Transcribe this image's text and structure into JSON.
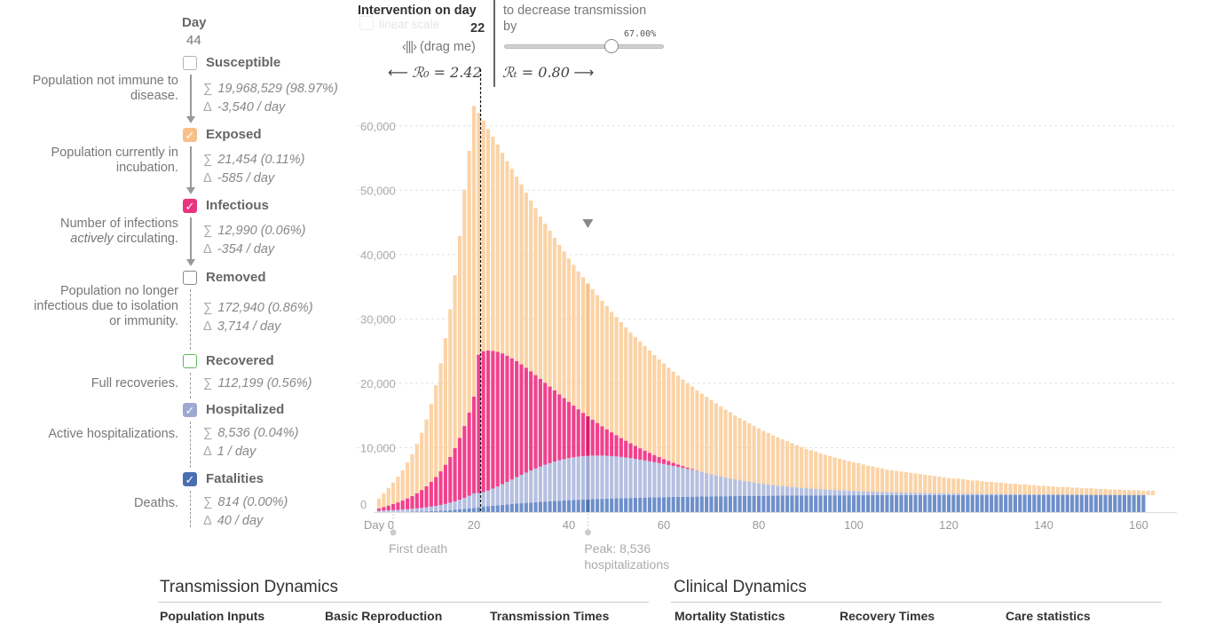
{
  "day": {
    "label": "Day",
    "value": "44"
  },
  "compartments": [
    {
      "name": "Susceptible",
      "color": "#b3b3b3",
      "checked": false,
      "description": "Population not immune to disease.",
      "sum": "19,968,529 (98.97%)",
      "delta": "-3,540 / day",
      "arrow": true
    },
    {
      "name": "Exposed",
      "color": "#f7c08a",
      "checked": true,
      "description": "Population currently in incubation.",
      "sum": "21,454 (0.11%)",
      "delta": "-585 / day",
      "arrow": true
    },
    {
      "name": "Infectious",
      "color": "#e8347e",
      "checked": true,
      "description": "Number of infections *actively* circulating.",
      "sum": "12,990 (0.06%)",
      "delta": "-354 / day",
      "arrow": true
    },
    {
      "name": "Removed",
      "color": "#888888",
      "checked": false,
      "description": "Population no longer infectious due to isolation or immunity.",
      "sum": "172,940 (0.86%)",
      "delta": "3,714 / day",
      "arrow": false
    },
    {
      "name": "Recovered",
      "color": "#5cb85c",
      "checked": false,
      "description": "Full recoveries.",
      "sum": "112,199 (0.56%)",
      "delta": "",
      "arrow": false
    },
    {
      "name": "Hospitalized",
      "color": "#9ea9d1",
      "checked": true,
      "description": "Active hospitalizations.",
      "sum": "8,536 (0.04%)",
      "delta": "1 / day",
      "arrow": false
    },
    {
      "name": "Fatalities",
      "color": "#4a6fb0",
      "checked": true,
      "description": "Deaths.",
      "sum": "814 (0.00%)",
      "delta": "40 / day",
      "arrow": false
    }
  ],
  "intervention": {
    "title": "Intervention on day",
    "day": "22",
    "drag_hint": "(drag me)",
    "ghost_label": "linear scale",
    "decrease_text_1": "to decrease transmission",
    "decrease_text_2": "by",
    "slider_value": "67.00%",
    "slider_fraction": 0.67,
    "r0_label": "ℛ₀ = 2.42",
    "rt_label": "ℛₜ = 0.80"
  },
  "annotations": {
    "first_death": "First death",
    "peak_line1": "Peak: 8,536",
    "peak_line2": "hospitalizations"
  },
  "sections": {
    "left_title": "Transmission Dynamics",
    "right_title": "Clinical Dynamics",
    "left_subs": [
      "Population Inputs",
      "Basic Reproduction",
      "Transmission Times"
    ],
    "right_subs": [
      "Mortality Statistics",
      "Recovery Times",
      "Care statistics"
    ]
  },
  "chart_data": {
    "type": "bar",
    "stacked": true,
    "x_tick_labels": [
      "Day 0",
      "20",
      "40",
      "60",
      "80",
      "100",
      "120",
      "140",
      "160"
    ],
    "x_ticks": [
      0,
      20,
      40,
      60,
      80,
      100,
      120,
      140,
      160
    ],
    "y_ticks": [
      0,
      10000,
      20000,
      30000,
      40000,
      50000,
      60000
    ],
    "y_tick_labels": [
      "0",
      "10,000",
      "20,000",
      "30,000",
      "40,000",
      "50,000",
      "60,000"
    ],
    "ylim": [
      0,
      63000
    ],
    "xlim": [
      -1,
      164
    ],
    "grid": true,
    "intervention_day": 22,
    "highlight_day": 44,
    "first_death_day": 3,
    "colors": {
      "fatalities": "#6e8fc9",
      "hospitalized": "#b5c0e1",
      "infectious": "#f0418c",
      "exposed": "#fbd3a6",
      "highlight_exposed": "#f7c08a",
      "highlight_infectious": "#d81b6a",
      "highlight_hospitalized": "#9ea9d1",
      "highlight_fatalities": "#4a6fb0"
    },
    "series_order": [
      "fatalities",
      "hospitalized",
      "infectious",
      "exposed"
    ],
    "days": [
      0,
      1,
      2,
      3,
      4,
      5,
      6,
      7,
      8,
      9,
      10,
      11,
      12,
      13,
      14,
      15,
      16,
      17,
      18,
      19,
      20,
      21,
      22,
      23,
      24,
      25,
      26,
      27,
      28,
      29,
      30,
      31,
      32,
      33,
      34,
      35,
      36,
      37,
      38,
      39,
      40,
      41,
      42,
      43,
      44,
      45,
      46,
      47,
      48,
      49,
      50,
      51,
      52,
      53,
      54,
      55,
      56,
      57,
      58,
      59,
      60,
      61,
      62,
      63,
      64,
      65,
      66,
      67,
      68,
      69,
      70,
      71,
      72,
      73,
      74,
      75,
      76,
      77,
      78,
      79,
      80,
      81,
      82,
      83,
      84,
      85,
      86,
      87,
      88,
      89,
      90,
      91,
      92,
      93,
      94,
      95,
      96,
      97,
      98,
      99,
      100,
      101,
      102,
      103,
      104,
      105,
      106,
      107,
      108,
      109,
      110,
      111,
      112,
      113,
      114,
      115,
      116,
      117,
      118,
      119,
      120,
      121,
      122,
      123,
      124,
      125,
      126,
      127,
      128,
      129,
      130,
      131,
      132,
      133,
      134,
      135,
      136,
      137,
      138,
      139,
      140,
      141,
      142,
      143,
      144,
      145,
      146,
      147,
      148,
      149,
      150,
      151,
      152,
      153,
      154,
      155,
      156,
      157,
      158,
      159,
      160,
      161,
      162,
      163
    ],
    "totals": [
      2100,
      2900,
      3750,
      4600,
      5500,
      6500,
      7700,
      9000,
      10600,
      12300,
      14400,
      16800,
      19700,
      23100,
      27000,
      31500,
      36800,
      42900,
      50100,
      56100,
      63100,
      62000,
      60800,
      59500,
      58300,
      57100,
      55800,
      54500,
      53300,
      52100,
      50900,
      49600,
      48400,
      47200,
      45900,
      44800,
      43700,
      42600,
      41500,
      40500,
      39400,
      38400,
      37400,
      36500,
      35500,
      34600,
      33700,
      32800,
      32000,
      31100,
      30300,
      29500,
      28700,
      27900,
      27200,
      26500,
      25800,
      25100,
      24400,
      23700,
      23100,
      22400,
      21800,
      21200,
      20600,
      20000,
      19500,
      18900,
      18400,
      17900,
      17400,
      16900,
      16400,
      15900,
      15500,
      15000,
      14600,
      14200,
      13800,
      13400,
      13000,
      12600,
      12300,
      11900,
      11600,
      11300,
      11000,
      10700,
      10400,
      10100,
      9800,
      9600,
      9400,
      9100,
      8900,
      8700,
      8500,
      8300,
      8100,
      7900,
      7700,
      7600,
      7400,
      7200,
      7100,
      6900,
      6800,
      6600,
      6500,
      6400,
      6300,
      6200,
      6100,
      6000,
      5900,
      5800,
      5700,
      5600,
      5500,
      5400,
      5300,
      5200,
      5200,
      5100,
      5000,
      4900,
      4900,
      4800,
      4700,
      4700,
      4600,
      4600,
      4500,
      4400,
      4400,
      4300,
      4300,
      4200,
      4200,
      4100,
      4100,
      4000,
      4000,
      3900,
      3900,
      3900,
      3800,
      3800,
      3700,
      3700,
      3700,
      3600,
      3600,
      3600,
      3500,
      3500,
      3500,
      3400,
      3400,
      3400,
      3400,
      3300,
      3300,
      3300
    ],
    "infectious_top": [
      560,
      780,
      1010,
      1250,
      1500,
      1800,
      2120,
      2500,
      2930,
      3430,
      4000,
      4680,
      5440,
      6330,
      7360,
      8550,
      9930,
      11520,
      13360,
      15480,
      17920,
      24450,
      25000,
      25100,
      25050,
      24900,
      24650,
      24300,
      23900,
      23450,
      22950,
      22420,
      21860,
      21280,
      20690,
      20090,
      19490,
      18890,
      18290,
      17700,
      17110,
      16540,
      15970,
      15420,
      14880,
      14350,
      13840,
      13340,
      12860,
      12390,
      11940,
      11500,
      11080,
      10680,
      10290,
      9910,
      9550,
      9200,
      8870,
      8550,
      8240,
      7950,
      7670,
      7400,
      7150,
      6910,
      6680,
      6460,
      6250,
      6050,
      5860,
      5680,
      5510,
      5350,
      5200,
      5060,
      4920,
      4800,
      4680,
      4570,
      4460,
      4360,
      4270,
      4180,
      4100,
      4020,
      3950,
      3880,
      3810,
      3750,
      3690,
      3640,
      3590,
      3540,
      3490,
      3450,
      3410,
      3370,
      3330,
      3300,
      3270,
      3240,
      3210,
      3180,
      3160,
      3130,
      3110,
      3090,
      3070,
      3050,
      3030,
      3010,
      2990,
      2980,
      2960,
      2950,
      2930,
      2920,
      2910,
      2900,
      2880,
      2870,
      2860,
      2850,
      2840,
      2830,
      2820,
      2810,
      2800,
      2800,
      2790,
      2780,
      2770,
      2760,
      2760,
      2750,
      2740,
      2740,
      2730,
      2720,
      2720,
      2710,
      2710,
      2700,
      2700,
      2690,
      2690,
      2680,
      2680,
      2670,
      2670,
      2660,
      2660,
      2660,
      2650,
      2650,
      2640,
      2640,
      2640,
      2630,
      2630,
      2630,
      2620,
      2620
    ],
    "hospitalized_top": [
      200,
      230,
      260,
      300,
      340,
      390,
      440,
      500,
      570,
      650,
      740,
      850,
      970,
      1110,
      1270,
      1460,
      1670,
      1920,
      2200,
      2530,
      2900,
      2950,
      3100,
      3350,
      3650,
      3980,
      4330,
      4690,
      5060,
      5420,
      5780,
      6130,
      6460,
      6780,
      7070,
      7350,
      7600,
      7830,
      8040,
      8220,
      8380,
      8510,
      8610,
      8690,
      8740,
      8770,
      8780,
      8770,
      8740,
      8700,
      8640,
      8560,
      8480,
      8380,
      8270,
      8150,
      8020,
      7890,
      7750,
      7610,
      7460,
      7310,
      7160,
      7010,
      6860,
      6710,
      6560,
      6410,
      6270,
      6130,
      5990,
      5860,
      5730,
      5600,
      5480,
      5360,
      5250,
      5140,
      5040,
      4940,
      4840,
      4750,
      4660,
      4580,
      4500,
      4420,
      4350,
      4280,
      4210,
      4150,
      4090,
      4030,
      3980,
      3930,
      3880,
      3830,
      3790,
      3750,
      3710,
      3670,
      3640,
      3600,
      3570,
      3540,
      3510,
      3480,
      3460,
      3430,
      3410,
      3390,
      3370,
      3350,
      3330,
      3310,
      3290,
      3270,
      3260,
      3240,
      3230,
      3210,
      3200,
      3190,
      3170,
      3160,
      3150,
      3140,
      3130,
      3120,
      3110,
      3100,
      3090,
      3080,
      3070,
      3060,
      3060,
      3050,
      3040,
      3030,
      3030,
      3020,
      3010,
      3010,
      3000,
      3000,
      2990,
      2990,
      2980,
      2980,
      2970,
      2970,
      2960,
      2960,
      2950,
      2950,
      2950,
      2940,
      2940,
      2930,
      2930,
      2930,
      2920,
      2920,
      2920,
      2910
    ],
    "fatalities_top": [
      0,
      0,
      0,
      10,
      20,
      30,
      40,
      55,
      70,
      90,
      110,
      135,
      165,
      200,
      240,
      290,
      350,
      410,
      480,
      560,
      650,
      730,
      820,
      900,
      980,
      1050,
      1120,
      1180,
      1250,
      1310,
      1370,
      1430,
      1480,
      1530,
      1580,
      1630,
      1670,
      1720,
      1760,
      1800,
      1840,
      1870,
      1910,
      1940,
      1970,
      2000,
      2030,
      2050,
      2080,
      2100,
      2130,
      2150,
      2170,
      2190,
      2210,
      2230,
      2250,
      2270,
      2280,
      2300,
      2310,
      2330,
      2340,
      2360,
      2370,
      2380,
      2390,
      2400,
      2420,
      2430,
      2440,
      2450,
      2460,
      2460,
      2470,
      2480,
      2490,
      2500,
      2500,
      2510,
      2520,
      2520,
      2530,
      2540,
      2540,
      2550,
      2550,
      2560,
      2560,
      2570,
      2570,
      2580,
      2580,
      2580,
      2590,
      2590,
      2590,
      2600,
      2600,
      2600,
      2610,
      2610,
      2610,
      2620,
      2620,
      2620,
      2620,
      2630,
      2630,
      2630,
      2630,
      2630,
      2640,
      2640,
      2640,
      2640,
      2640,
      2650,
      2650,
      2650,
      2650,
      2650,
      2650,
      2660,
      2660,
      2660,
      2660,
      2660,
      2660,
      2660,
      2660,
      2670,
      2670,
      2670,
      2670,
      2670,
      2670,
      2670,
      2670,
      2670,
      2670,
      2680,
      2680,
      2680,
      2680,
      2680,
      2680,
      2680,
      2680,
      2680,
      2680,
      2680,
      2680,
      2680,
      2680,
      2690,
      2690,
      2690,
      2690,
      2690,
      2690,
      2690
    ]
  }
}
